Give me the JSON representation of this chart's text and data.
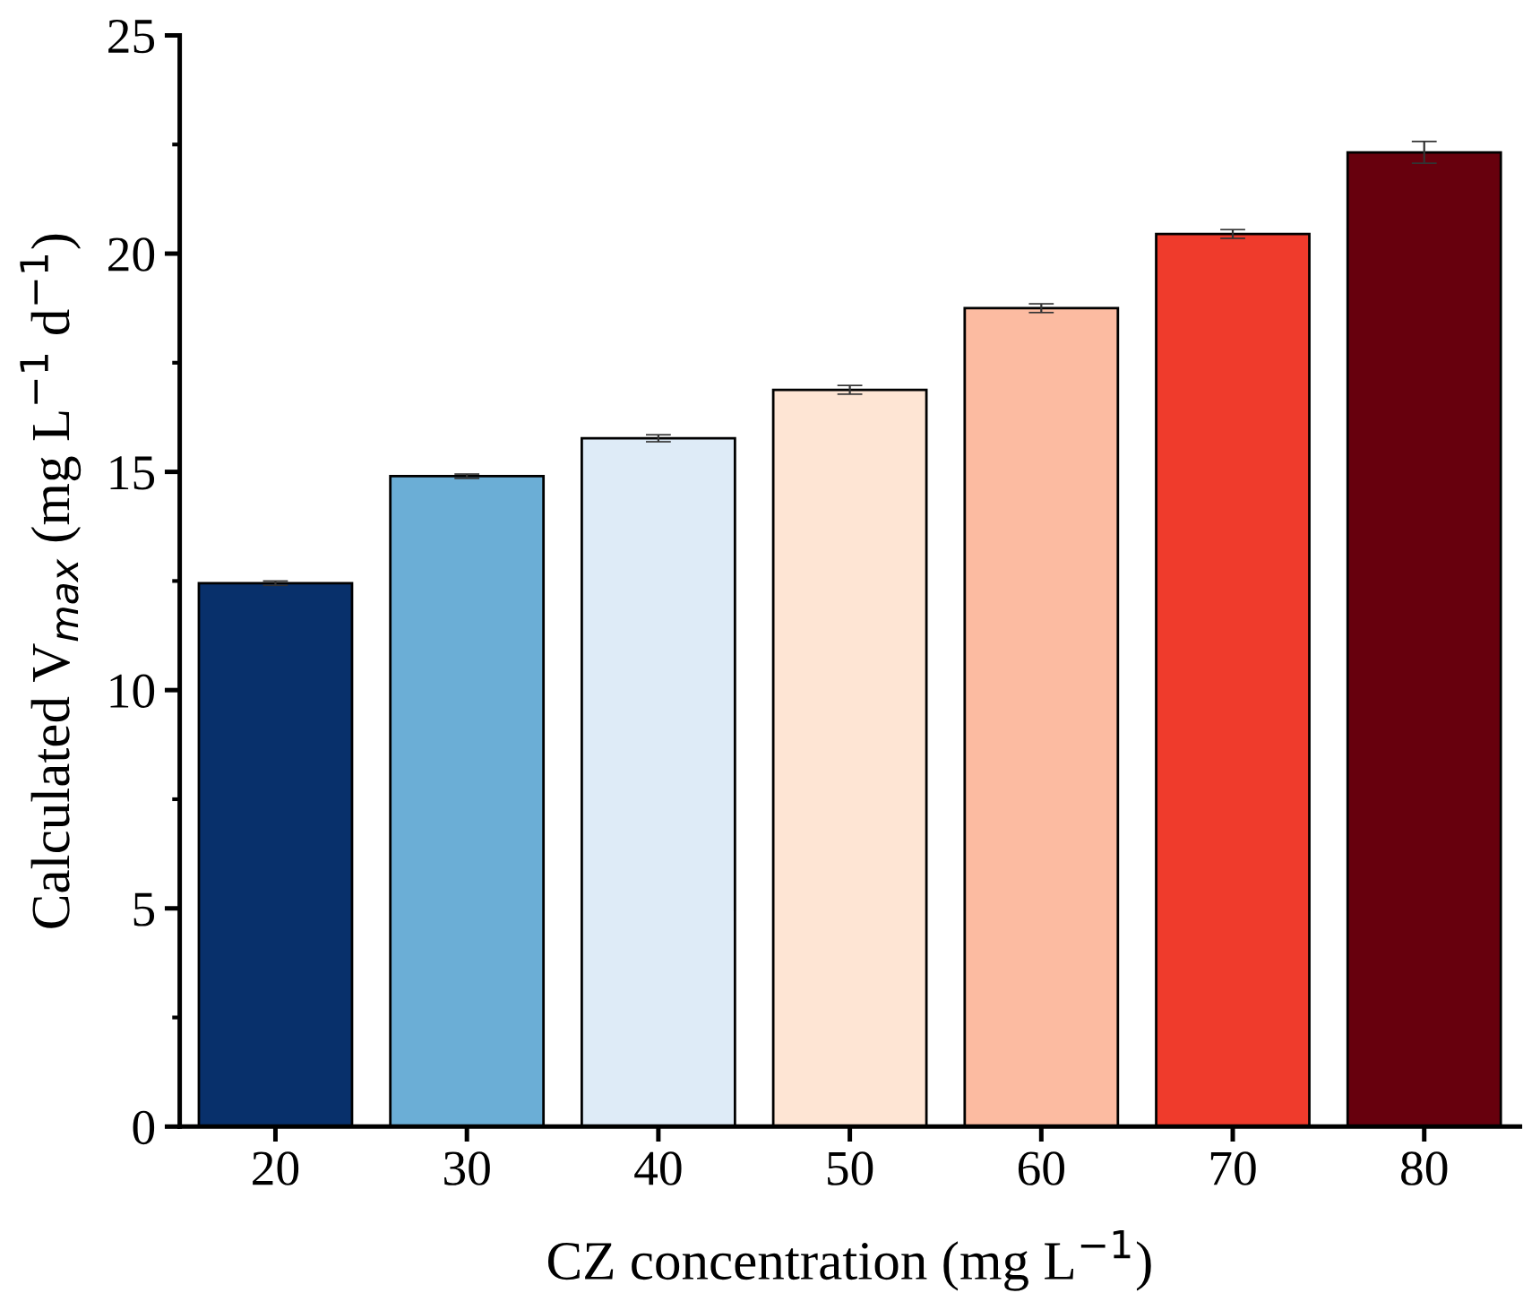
{
  "chart_data": {
    "type": "bar",
    "xlabel": "CZ concentration (mg L$^{−1}$)",
    "ylabel": "Calculated V$_{max}$ (mg L$^{−1}$ d$^{−1}$)",
    "categories": [
      "20",
      "30",
      "40",
      "50",
      "60",
      "70",
      "80"
    ],
    "values": [
      12.45,
      14.9,
      15.77,
      16.88,
      18.75,
      20.45,
      22.32
    ],
    "errors": [
      0.05,
      0.05,
      0.08,
      0.1,
      0.1,
      0.1,
      0.25
    ],
    "colors": [
      "#08306b",
      "#6baed6",
      "#deebf7",
      "#fee5d4",
      "#fcbba1",
      "#ef3b2c",
      "#67000d"
    ],
    "ylim": [
      0,
      25
    ],
    "yticks": [
      0,
      5,
      10,
      15,
      20,
      25
    ],
    "grid": false
  }
}
